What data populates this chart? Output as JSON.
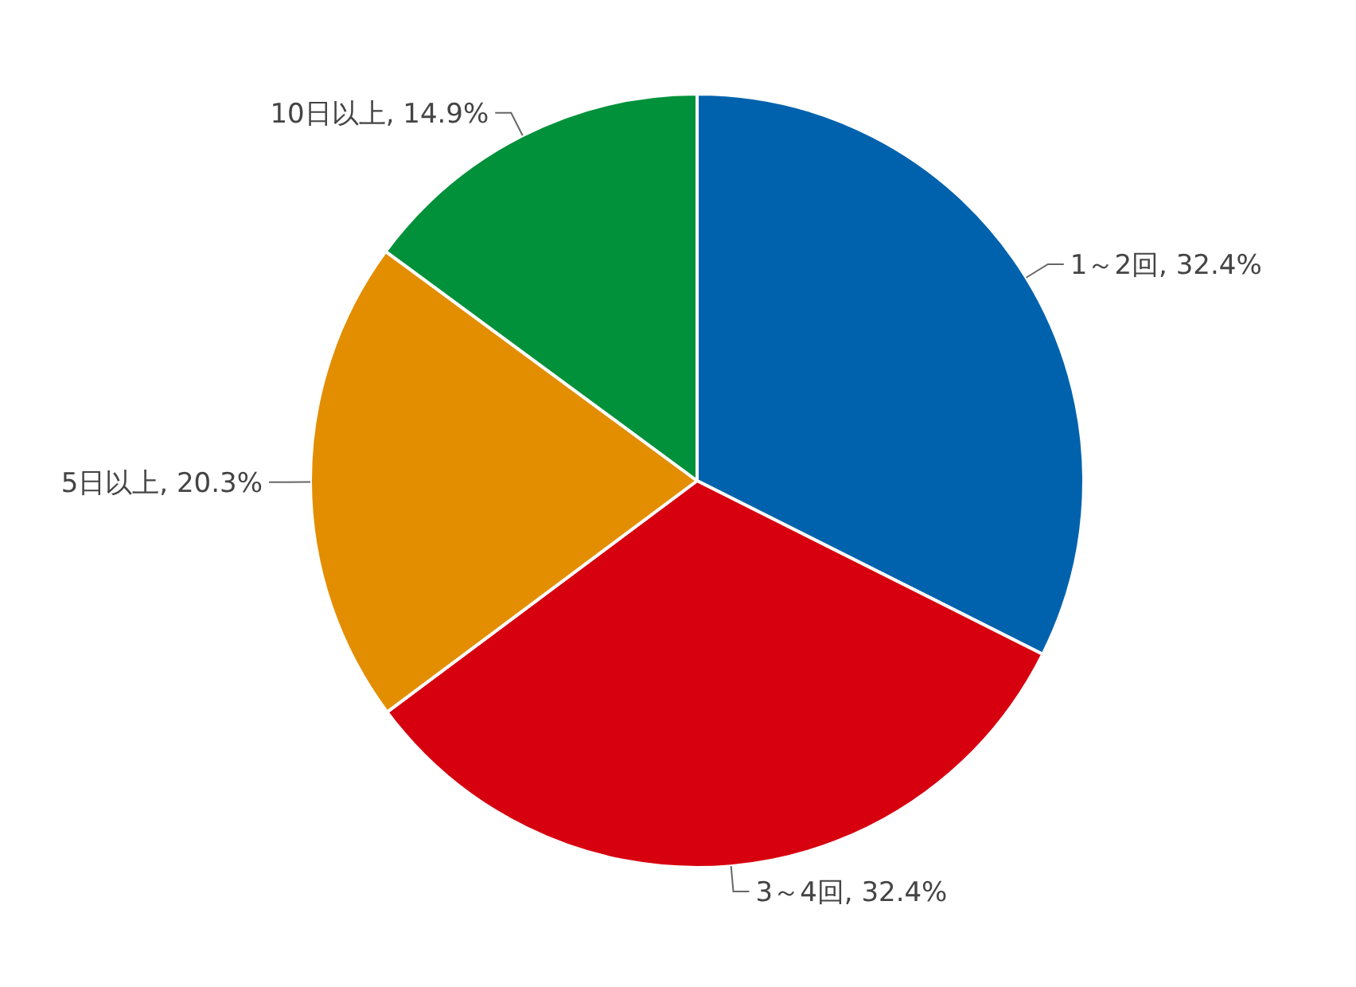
{
  "chart_data": {
    "type": "pie",
    "categories": [
      "1～2回",
      "3～4回",
      "5日以上",
      "10日以上"
    ],
    "values": [
      32.4,
      32.4,
      20.3,
      14.9
    ],
    "colors": [
      "#0062ad",
      "#d7000f",
      "#e38e00",
      "#00913a"
    ],
    "value_labels": [
      "32.4%",
      "32.4%",
      "20.3%",
      "14.9%"
    ]
  }
}
